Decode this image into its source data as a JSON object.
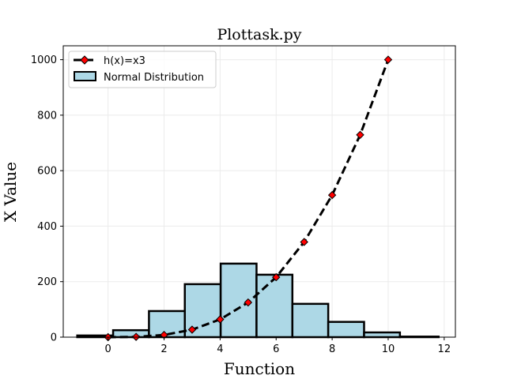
{
  "chart_data": {
    "type": "bar+line",
    "title": "Plottask.py",
    "xlabel": "Function",
    "ylabel": "X Value",
    "xlim": [
      -1.6,
      12.4
    ],
    "ylim": [
      0,
      1050
    ],
    "xticks": [
      0,
      2,
      4,
      6,
      8,
      10,
      12
    ],
    "yticks": [
      0,
      200,
      400,
      600,
      800,
      1000
    ],
    "grid": true,
    "legend_position": "top-left",
    "histogram": {
      "name": "Normal Distribution",
      "color": "#add8e6",
      "edgecolor": "#000000",
      "bins": [
        {
          "start": -1.1,
          "end": 0.18,
          "count": 6
        },
        {
          "start": 0.18,
          "end": 1.46,
          "count": 25
        },
        {
          "start": 1.46,
          "end": 2.74,
          "count": 94
        },
        {
          "start": 2.74,
          "end": 4.02,
          "count": 191
        },
        {
          "start": 4.02,
          "end": 5.3,
          "count": 265
        },
        {
          "start": 5.3,
          "end": 6.58,
          "count": 225
        },
        {
          "start": 6.58,
          "end": 7.86,
          "count": 120
        },
        {
          "start": 7.86,
          "end": 9.14,
          "count": 55
        },
        {
          "start": 9.14,
          "end": 10.42,
          "count": 17
        },
        {
          "start": 10.42,
          "end": 11.8,
          "count": 2
        }
      ]
    },
    "line": {
      "name": "h(x)=x3",
      "color": "#000000",
      "marker_color": "#ff0000",
      "x": [
        0,
        1,
        2,
        3,
        4,
        5,
        6,
        7,
        8,
        9,
        10
      ],
      "y": [
        0,
        1,
        8,
        27,
        64,
        125,
        216,
        343,
        512,
        729,
        1000
      ]
    }
  }
}
